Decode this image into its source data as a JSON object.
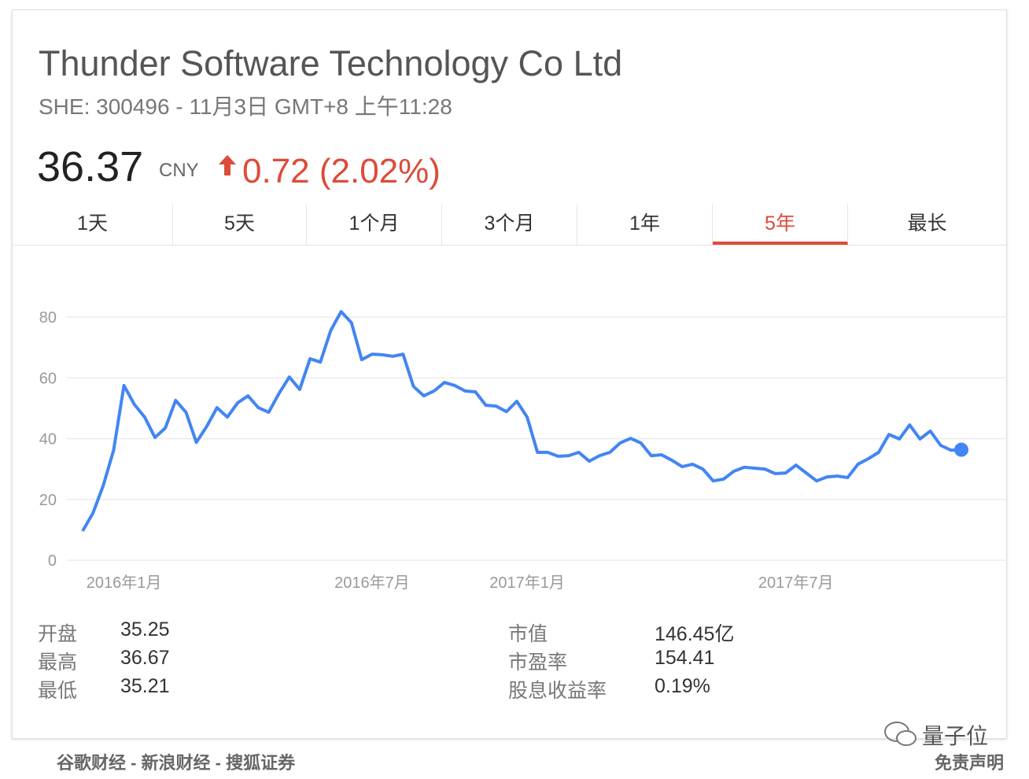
{
  "header": {
    "title": "Thunder Software Technology Co Ltd",
    "subtitle": "SHE: 300496 - 11月3日 GMT+8 上午11:28",
    "price": "36.37",
    "currency": "CNY",
    "change": "0.72 (2.02%)"
  },
  "tabs": {
    "items": [
      "1天",
      "5天",
      "1个月",
      "3个月",
      "1年",
      "5年",
      "最长"
    ],
    "active": 5
  },
  "chart_data": {
    "type": "line",
    "categories": [
      null,
      null,
      null,
      null,
      "2016年1月",
      null,
      null,
      null,
      null,
      null,
      null,
      null,
      null,
      null,
      null,
      null,
      null,
      null,
      null,
      null,
      null,
      null,
      null,
      null,
      null,
      null,
      null,
      null,
      "2016年7月",
      null,
      null,
      null,
      null,
      null,
      null,
      null,
      null,
      null,
      null,
      null,
      null,
      null,
      null,
      "2017年1月",
      null,
      null,
      null,
      null,
      null,
      null,
      null,
      null,
      null,
      null,
      null,
      null,
      null,
      null,
      null,
      null,
      null,
      null,
      null,
      null,
      null,
      null,
      null,
      null,
      null,
      "2017年7月",
      null,
      null,
      null,
      null,
      null,
      null,
      null,
      null,
      null,
      null,
      null,
      null,
      null,
      null,
      null,
      null
    ],
    "series": [
      {
        "name": "Thunder Software Technology Co Ltd",
        "color": "#4285f4",
        "values": [
          9.6,
          15.5,
          24.6,
          36.2,
          57.5,
          51.3,
          47.1,
          40.4,
          43.5,
          52.6,
          48.7,
          38.8,
          44.0,
          50.2,
          47.1,
          51.8,
          54.1,
          50.2,
          48.7,
          54.9,
          60.3,
          56.2,
          66.3,
          65.2,
          75.6,
          81.8,
          78.2,
          66.0,
          67.8,
          67.6,
          67.1,
          67.8,
          57.2,
          54.1,
          55.7,
          58.5,
          57.5,
          55.7,
          55.4,
          51.0,
          50.7,
          48.9,
          52.3,
          47.1,
          35.5,
          35.5,
          34.2,
          34.4,
          35.5,
          32.6,
          34.4,
          35.5,
          38.6,
          40.1,
          38.6,
          34.4,
          34.7,
          32.9,
          30.8,
          31.6,
          30.0,
          26.1,
          26.7,
          29.3,
          30.6,
          30.3,
          30.0,
          28.5,
          28.7,
          31.3,
          28.7,
          26.1,
          27.4,
          27.7,
          27.2,
          31.6,
          33.4,
          35.5,
          41.4,
          39.9,
          44.5,
          39.9,
          42.5,
          37.8,
          36.2,
          36.37
        ]
      }
    ],
    "ylim": [
      0,
      80
    ],
    "yticks": [
      0,
      20,
      40,
      60,
      80
    ],
    "grid": true
  },
  "stats": {
    "left": [
      {
        "label": "开盘",
        "value": "35.25"
      },
      {
        "label": "最高",
        "value": "36.67"
      },
      {
        "label": "最低",
        "value": "35.21"
      }
    ],
    "right": [
      {
        "label": "市值",
        "value": "146.45亿"
      },
      {
        "label": "市盈率",
        "value": "154.41"
      },
      {
        "label": "股息收益率",
        "value": "0.19%"
      }
    ]
  },
  "footer": {
    "sources": "谷歌财经 - 新浪财经 - 搜狐证券",
    "disclaimer": "免责声明",
    "watermark": "量子位"
  }
}
